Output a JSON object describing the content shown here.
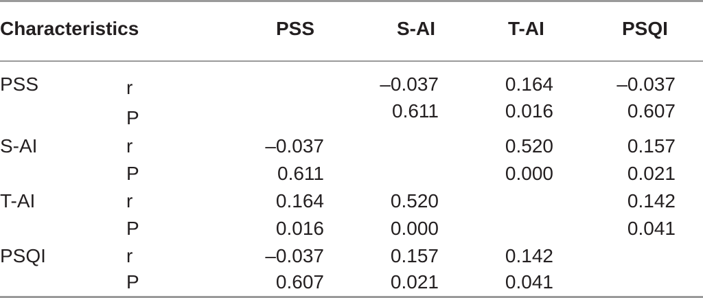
{
  "table": {
    "headers": {
      "characteristics": "Characteristics",
      "pss": "PSS",
      "sai": "S-AI",
      "tai": "T-AI",
      "psqi": "PSQI"
    },
    "rows": [
      {
        "label": "PSS",
        "stat": "r",
        "pss": "",
        "sai": "–0.037",
        "tai": "0.164",
        "psqi": "–0.037"
      },
      {
        "label": "",
        "stat": "P",
        "pss": "",
        "sai": "0.611",
        "tai": "0.016",
        "psqi": "0.607"
      },
      {
        "label": "S-AI",
        "stat": "r",
        "pss": "–0.037",
        "sai": "",
        "tai": "0.520",
        "psqi": "0.157"
      },
      {
        "label": "",
        "stat": "P",
        "pss": "0.611",
        "sai": "",
        "tai": "0.000",
        "psqi": "0.021"
      },
      {
        "label": "T-AI",
        "stat": "r",
        "pss": "0.164",
        "sai": "0.520",
        "tai": "",
        "psqi": "0.142"
      },
      {
        "label": "",
        "stat": "P",
        "pss": "0.016",
        "sai": "0.000",
        "tai": "",
        "psqi": "0.041"
      },
      {
        "label": "PSQI",
        "stat": "r",
        "pss": "–0.037",
        "sai": "0.157",
        "tai": "0.142",
        "psqi": ""
      },
      {
        "label": "",
        "stat": "P",
        "pss": "0.607",
        "sai": "0.021",
        "tai": "0.041",
        "psqi": ""
      }
    ]
  }
}
